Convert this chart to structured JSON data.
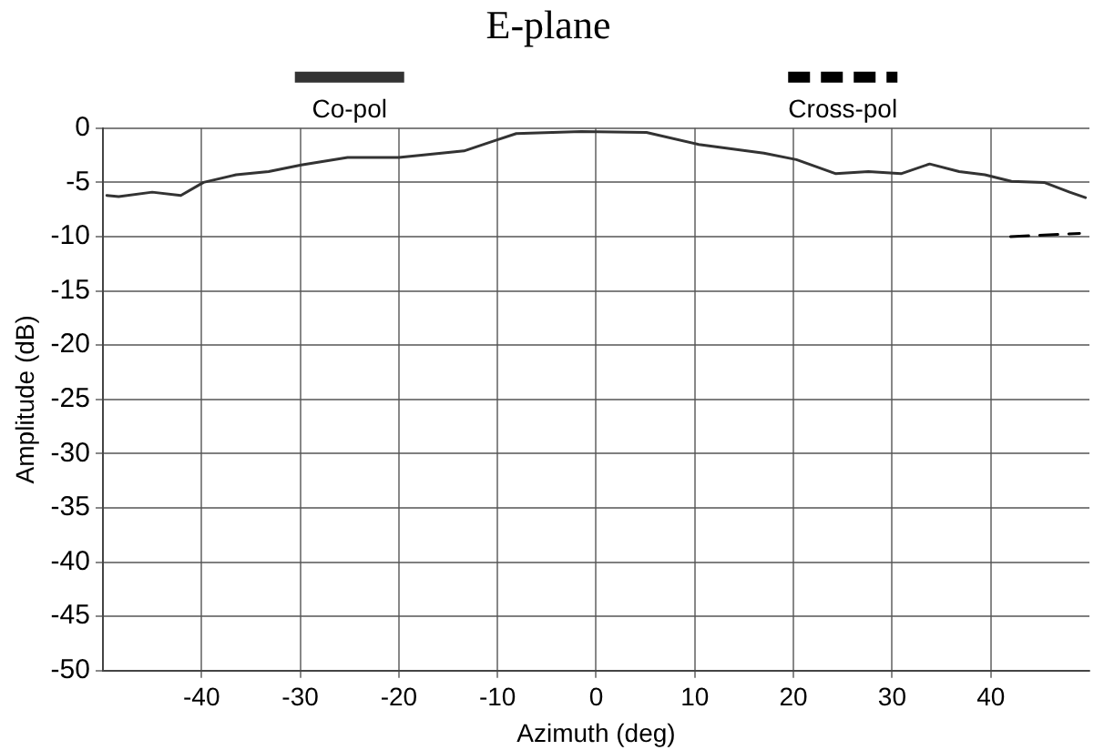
{
  "chart_data": {
    "type": "line",
    "title": "E-plane",
    "xlabel": "Azimuth (deg)",
    "ylabel": "Amplitude (dB)",
    "xlim": [
      -50,
      50
    ],
    "xticks": [
      -40,
      -30,
      -20,
      -10,
      0,
      10,
      20,
      30,
      40
    ],
    "ylim": [
      -50,
      0
    ],
    "yticks": [
      -50,
      -45,
      -40,
      -35,
      -30,
      -25,
      -20,
      -15,
      -10,
      -5,
      0
    ],
    "grid": true,
    "legend": "top",
    "marker": "none",
    "series": [
      {
        "name": "Co-pol",
        "color": "#333333",
        "line_style": "solid",
        "x": [
          -49.6,
          -48.4,
          -45,
          -42.1,
          -39.8,
          -36.5,
          -33.2,
          -29.9,
          -25.2,
          -20,
          -13.4,
          -10.1,
          -8.1,
          -1.5,
          5.1,
          10.4,
          17,
          20.3,
          24.3,
          27.6,
          30.9,
          33.8,
          36.8,
          39.4,
          42.1,
          45.4,
          48,
          49.6
        ],
        "values": [
          -6.2,
          -6.3,
          -5.9,
          -6.2,
          -5,
          -4.3,
          -4,
          -3.4,
          -2.7,
          -2.7,
          -2.1,
          -1.1,
          -0.5,
          -0.3,
          -0.4,
          -1.5,
          -2.3,
          -2.9,
          -4.2,
          -4,
          -4.2,
          -3.3,
          -4,
          -4.3,
          -4.9,
          -5,
          -5.9,
          -6.4
        ]
      },
      {
        "name": "Cross-pol",
        "color": "#000000",
        "line_style": "dashed",
        "x": [
          42,
          49
        ],
        "values": [
          -10,
          -9.7
        ]
      }
    ]
  }
}
